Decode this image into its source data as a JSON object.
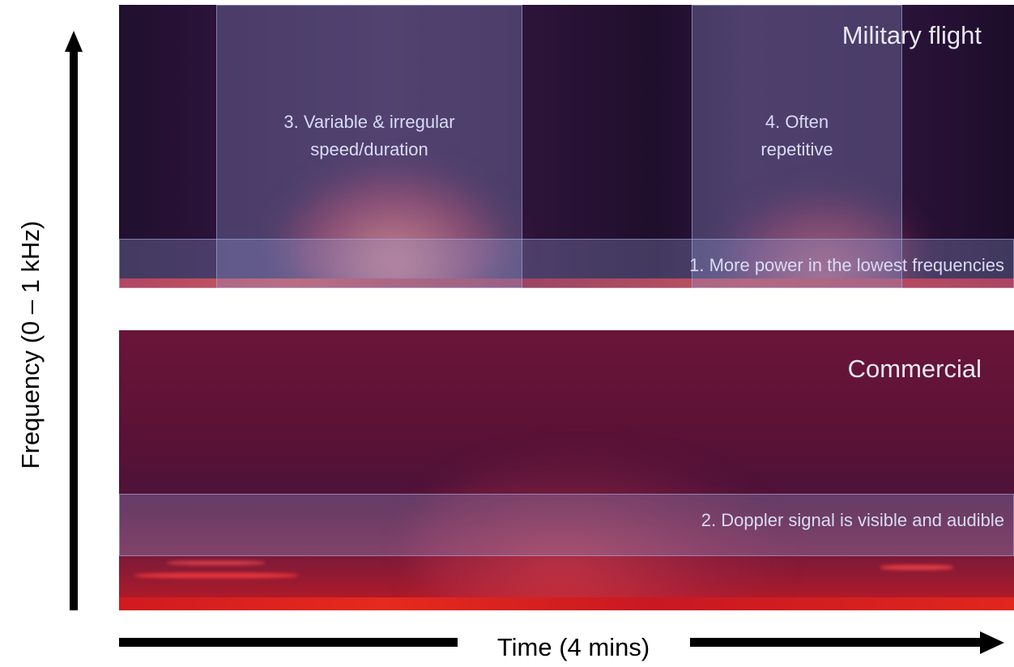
{
  "axes": {
    "y_label": "Frequency (0 – 1 kHz)",
    "x_label": "Time (4 mins)"
  },
  "panels": {
    "military": {
      "title": "Military flight",
      "annotations": {
        "variable_line1": "3.  Variable & irregular",
        "variable_line2": "speed/duration",
        "repetitive_line1": "4. Often",
        "repetitive_line2": "repetitive",
        "low_freq": "1. More power in the lowest frequencies"
      }
    },
    "commercial": {
      "title": "Commercial",
      "annotations": {
        "doppler": "2. Doppler signal is visible and audible"
      }
    }
  },
  "colors": {
    "overlay": "#96a0d7",
    "annotation_text": "#d8dcf4",
    "axis": "#000000"
  }
}
